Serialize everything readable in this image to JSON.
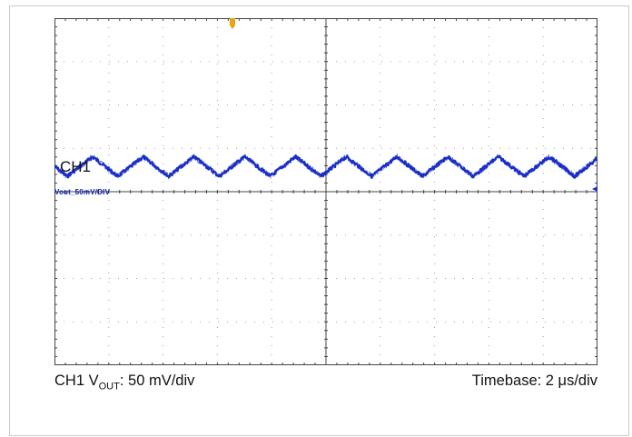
{
  "channel_label": "CH1",
  "trace_tag": "Vout_50mV/DIV",
  "caption_left": {
    "prefix": "CH1 V",
    "subscript": "OUT",
    "suffix": ": 50 mV/div"
  },
  "caption_right": "Timebase: 2 μs/div",
  "colors": {
    "trace": "#1a2fc8",
    "grid_dots": "#9aa0a8",
    "axes": "#444444",
    "trigger_marker": "#e8a317"
  },
  "chart_data": {
    "type": "line",
    "title": "",
    "xlabel": "",
    "ylabel": "",
    "x_divisions": 10,
    "y_divisions": 8,
    "grid": true,
    "trigger_marker": "top",
    "series": [
      {
        "name": "CH1",
        "waveform": "triangle",
        "cycles_on_screen": 10.7,
        "amplitude_divisions": 0.45,
        "offset_divisions": 3.0
      }
    ]
  }
}
